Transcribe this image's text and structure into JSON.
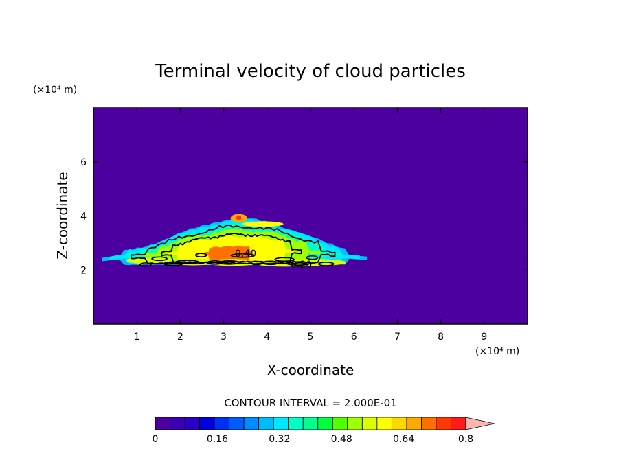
{
  "chart_data": {
    "type": "heatmap",
    "title": "Terminal velocity of cloud particles",
    "xlabel": "X-coordinate",
    "ylabel": "Z-coordinate",
    "x_unit": "(×10⁴ m)",
    "y_unit": "(×10⁴ m)",
    "xlim": [
      0,
      10
    ],
    "ylim": [
      0,
      8
    ],
    "x_ticks": [
      "1",
      "2",
      "3",
      "4",
      "5",
      "6",
      "7",
      "8",
      "9"
    ],
    "y_ticks": [
      "2",
      "4",
      "6"
    ],
    "contour_interval_text": "CONTOUR INTERVAL = 2.000E-01",
    "contour_labels": [
      "0.40",
      "0.20"
    ],
    "colorbar": {
      "min": 0,
      "max": 0.8,
      "step": 0.04,
      "tick_labels": [
        "0",
        "0.16",
        "0.32",
        "0.48",
        "0.64",
        "0.8"
      ],
      "extend": "max",
      "colors": [
        "#4b009f",
        "#3a00b4",
        "#2a00c8",
        "#0000dc",
        "#0030f0",
        "#005cff",
        "#008cff",
        "#00bcff",
        "#00e8ff",
        "#00ffc4",
        "#00ff8c",
        "#00ff3c",
        "#50ff00",
        "#a0ff00",
        "#dcff00",
        "#ffff00",
        "#ffd800",
        "#ffa800",
        "#ff7000",
        "#ff3800",
        "#ff1a1a"
      ],
      "extend_color": "#ffb4b4"
    },
    "background_value": 0,
    "background_color": "#4b009f",
    "cloud": {
      "x_range": [
        0.2,
        6.3
      ],
      "z_range": [
        2.0,
        4.1
      ],
      "band_levels": [
        {
          "range": [
            0.08,
            0.16
          ],
          "color": "#00bcff"
        },
        {
          "range": [
            0.16,
            0.32
          ],
          "color": "#00e8ff"
        },
        {
          "range": [
            0.32,
            0.44
          ],
          "color": "#00ffc4"
        },
        {
          "range": [
            0.44,
            0.56
          ],
          "color": "#a0ff00"
        },
        {
          "range": [
            0.56,
            0.64
          ],
          "color": "#ffff00"
        },
        {
          "range": [
            0.64,
            0.8
          ],
          "color": "#ff7000"
        }
      ]
    }
  }
}
